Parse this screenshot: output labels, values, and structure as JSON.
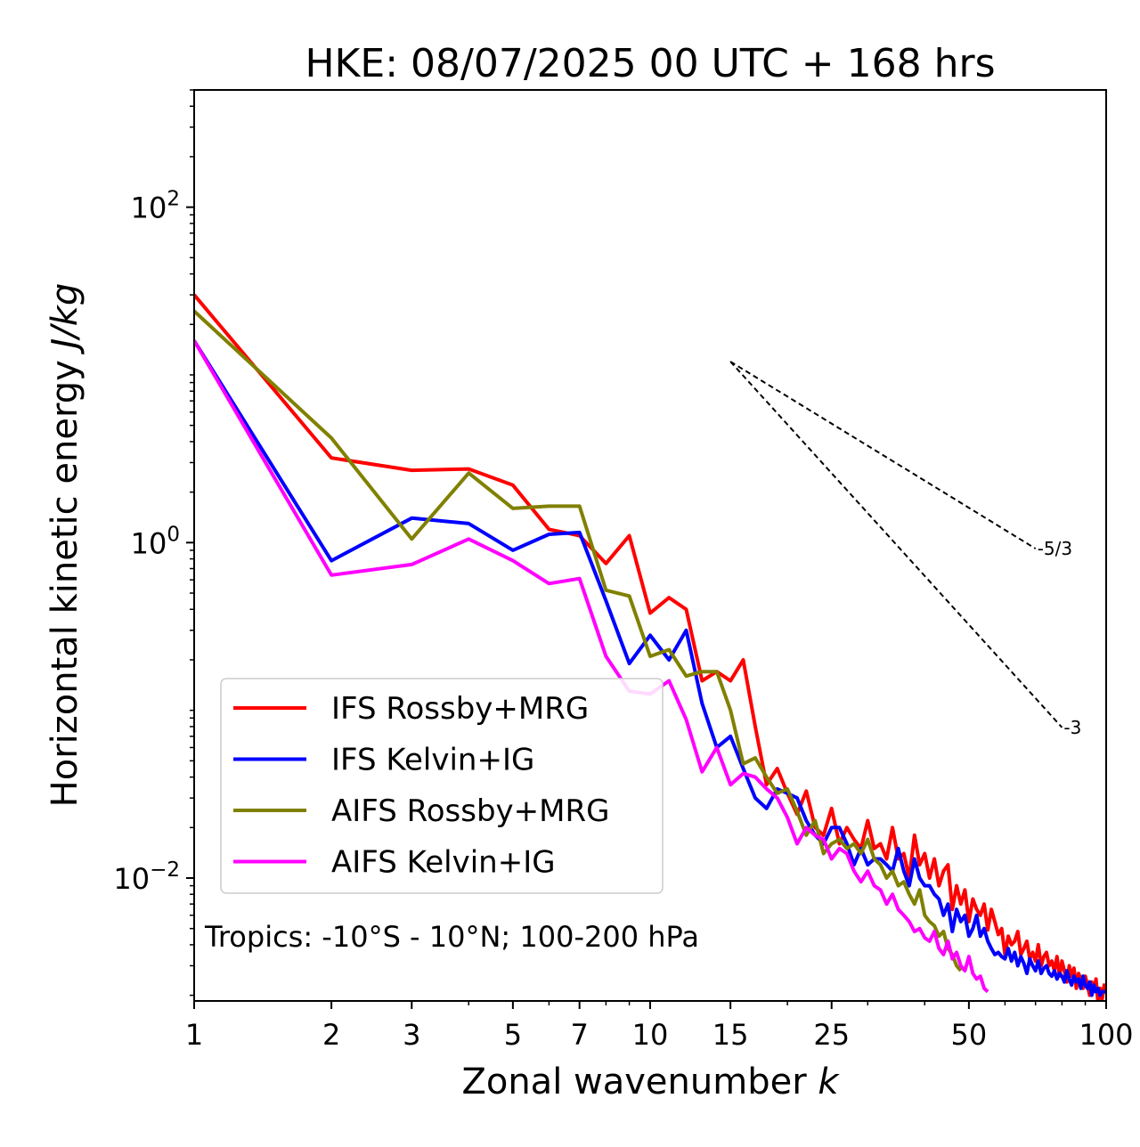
{
  "chart_data": {
    "type": "line",
    "title": "HKE: 08/07/2025 00 UTC + 168 hrs",
    "xlabel": "Zonal wavenumber k",
    "ylabel": "Horizontal kinetic energy J/kg",
    "x_scale": "log",
    "y_scale": "log",
    "xlim": [
      1,
      100
    ],
    "ylim": [
      0.00185,
      500
    ],
    "x_ticks": [
      1,
      2,
      3,
      5,
      7,
      10,
      15,
      25,
      50,
      100
    ],
    "x_tick_labels": [
      "1",
      "2",
      "3",
      "5",
      "7",
      "10",
      "15",
      "25",
      "50",
      "100"
    ],
    "y_major_ticks": [
      0.01,
      1,
      100
    ],
    "y_major_tick_labels": [
      {
        "base": "10",
        "exp": "−2"
      },
      {
        "base": "10",
        "exp": "0"
      },
      {
        "base": "10",
        "exp": "2"
      }
    ],
    "annotation": "Tropics: -10°S - 10°N; 100-200 hPa",
    "legend_position": "lower-left",
    "reference_lines": [
      {
        "label": "-5/3",
        "slope": -1.6667,
        "x": [
          15,
          70
        ],
        "y0": 12.0
      },
      {
        "label": "-3",
        "slope": -3.0,
        "x": [
          15,
          80
        ],
        "y0": 12.0
      }
    ],
    "series": [
      {
        "name": "IFS Rossby+MRG",
        "color": "#ff0000",
        "x": [
          1,
          2,
          3,
          4,
          5,
          6,
          7,
          8,
          9,
          10,
          11,
          12,
          13,
          14,
          15,
          16,
          17,
          18,
          19,
          20,
          21,
          22,
          23,
          24,
          25,
          26,
          27,
          28,
          29,
          30,
          31,
          32,
          33,
          34,
          35,
          36,
          37,
          38,
          39,
          40,
          41,
          42,
          43,
          44,
          45,
          46,
          47,
          48,
          49,
          50,
          51,
          52,
          53,
          54,
          55,
          56,
          57,
          58,
          59,
          60,
          61,
          62,
          63,
          64,
          65,
          66,
          67,
          68,
          69,
          70,
          71,
          72,
          73,
          74,
          75,
          76,
          77,
          78,
          79,
          80,
          81,
          82,
          83,
          84,
          85,
          86,
          87,
          88,
          89,
          90,
          91,
          92,
          93,
          94,
          95,
          96,
          97,
          98,
          99,
          100
        ],
        "y": [
          30.0,
          3.2,
          2.7,
          2.75,
          2.2,
          1.2,
          1.1,
          0.75,
          1.1,
          0.38,
          0.47,
          0.4,
          0.15,
          0.17,
          0.15,
          0.2,
          0.08,
          0.036,
          0.045,
          0.032,
          0.024,
          0.033,
          0.02,
          0.018,
          0.026,
          0.016,
          0.02,
          0.017,
          0.015,
          0.022,
          0.015,
          0.016,
          0.013,
          0.02,
          0.013,
          0.014,
          0.01,
          0.018,
          0.012,
          0.014,
          0.01,
          0.013,
          0.009,
          0.011,
          0.012,
          0.0065,
          0.009,
          0.007,
          0.0085,
          0.0055,
          0.0075,
          0.0065,
          0.006,
          0.007,
          0.0049,
          0.0065,
          0.0055,
          0.0046,
          0.005,
          0.0035,
          0.0045,
          0.004,
          0.0042,
          0.0048,
          0.0035,
          0.0038,
          0.0042,
          0.0033,
          0.0036,
          0.0032,
          0.004,
          0.003,
          0.0034,
          0.0036,
          0.003,
          0.0032,
          0.0028,
          0.0034,
          0.0026,
          0.0032,
          0.0028,
          0.0024,
          0.003,
          0.0026,
          0.0029,
          0.0022,
          0.0027,
          0.0025,
          0.0022,
          0.0026,
          0.0023,
          0.002,
          0.0024,
          0.0021,
          0.0025,
          0.0018,
          0.0022,
          0.0019,
          0.0023,
          0.0021
        ]
      },
      {
        "name": "IFS Kelvin+IG",
        "color": "#0000ff",
        "x": [
          1,
          2,
          3,
          4,
          5,
          6,
          7,
          8,
          9,
          10,
          11,
          12,
          13,
          14,
          15,
          16,
          17,
          18,
          19,
          20,
          21,
          22,
          23,
          24,
          25,
          26,
          27,
          28,
          29,
          30,
          31,
          32,
          33,
          34,
          35,
          36,
          37,
          38,
          39,
          40,
          41,
          42,
          43,
          44,
          45,
          46,
          47,
          48,
          49,
          50,
          51,
          52,
          53,
          54,
          55,
          56,
          57,
          58,
          59,
          60,
          61,
          62,
          63,
          64,
          65,
          66,
          67,
          68,
          69,
          70,
          71,
          72,
          73,
          74,
          75,
          76,
          77,
          78,
          79,
          80,
          81,
          82,
          83,
          84,
          85,
          86,
          87,
          88,
          89,
          90,
          91,
          92,
          93,
          94,
          95,
          96,
          97,
          98,
          99,
          100
        ],
        "y": [
          16.0,
          0.78,
          1.4,
          1.3,
          0.9,
          1.12,
          1.15,
          0.45,
          0.19,
          0.28,
          0.2,
          0.3,
          0.11,
          0.06,
          0.07,
          0.045,
          0.03,
          0.026,
          0.034,
          0.032,
          0.03,
          0.022,
          0.018,
          0.016,
          0.02,
          0.02,
          0.016,
          0.012,
          0.015,
          0.012,
          0.013,
          0.013,
          0.012,
          0.011,
          0.015,
          0.011,
          0.009,
          0.013,
          0.01,
          0.009,
          0.009,
          0.008,
          0.0075,
          0.006,
          0.007,
          0.0048,
          0.0065,
          0.0055,
          0.006,
          0.0045,
          0.005,
          0.006,
          0.0045,
          0.005,
          0.0042,
          0.0038,
          0.0035,
          0.0036,
          0.0034,
          0.0033,
          0.0038,
          0.0032,
          0.0036,
          0.003,
          0.0034,
          0.0031,
          0.0027,
          0.0033,
          0.003,
          0.0028,
          0.0032,
          0.0027,
          0.0029,
          0.003,
          0.0027,
          0.0026,
          0.0028,
          0.0025,
          0.0027,
          0.0026,
          0.0024,
          0.0028,
          0.0025,
          0.0023,
          0.0026,
          0.0024,
          0.0025,
          0.0022,
          0.0026,
          0.0023,
          0.0022,
          0.0024,
          0.002,
          0.0023,
          0.0021,
          0.0022,
          0.002,
          0.0021,
          0.0021,
          0.0021
        ]
      },
      {
        "name": "AIFS Rossby+MRG",
        "color": "#808000",
        "x": [
          1,
          2,
          3,
          4,
          5,
          6,
          7,
          8,
          9,
          10,
          11,
          12,
          13,
          14,
          15,
          16,
          17,
          18,
          19,
          20,
          21,
          22,
          23,
          24,
          25,
          26,
          27,
          28,
          29,
          30,
          31,
          32,
          33,
          34,
          35,
          36,
          37,
          38,
          39,
          40,
          41,
          42,
          43,
          44,
          45,
          46,
          47,
          48
        ],
        "y": [
          24.0,
          4.2,
          1.05,
          2.6,
          1.6,
          1.65,
          1.65,
          0.52,
          0.48,
          0.21,
          0.23,
          0.16,
          0.17,
          0.17,
          0.1,
          0.048,
          0.052,
          0.04,
          0.032,
          0.034,
          0.025,
          0.018,
          0.022,
          0.014,
          0.016,
          0.017,
          0.015,
          0.016,
          0.014,
          0.017,
          0.013,
          0.012,
          0.01,
          0.011,
          0.009,
          0.0095,
          0.008,
          0.007,
          0.0085,
          0.006,
          0.0055,
          0.0052,
          0.0045,
          0.0048,
          0.0038,
          0.0035,
          0.003,
          0.0028
        ]
      },
      {
        "name": "AIFS Kelvin+IG",
        "color": "#ff00ff",
        "x": [
          1,
          2,
          3,
          4,
          5,
          6,
          7,
          8,
          9,
          10,
          11,
          12,
          13,
          14,
          15,
          16,
          17,
          18,
          19,
          20,
          21,
          22,
          23,
          24,
          25,
          26,
          27,
          28,
          29,
          30,
          31,
          32,
          33,
          34,
          35,
          36,
          37,
          38,
          39,
          40,
          41,
          42,
          43,
          44,
          45,
          46,
          47,
          48,
          49,
          50,
          51,
          52,
          53,
          54,
          55
        ],
        "y": [
          16.0,
          0.64,
          0.74,
          1.05,
          0.78,
          0.57,
          0.61,
          0.21,
          0.13,
          0.125,
          0.15,
          0.088,
          0.043,
          0.06,
          0.036,
          0.042,
          0.04,
          0.034,
          0.03,
          0.023,
          0.016,
          0.02,
          0.018,
          0.017,
          0.013,
          0.015,
          0.014,
          0.011,
          0.0095,
          0.011,
          0.009,
          0.0085,
          0.007,
          0.008,
          0.0065,
          0.006,
          0.0055,
          0.0048,
          0.005,
          0.0044,
          0.0042,
          0.0048,
          0.0038,
          0.0035,
          0.0042,
          0.0033,
          0.0036,
          0.003,
          0.0028,
          0.0034,
          0.0027,
          0.0025,
          0.0026,
          0.0022,
          0.0021
        ]
      }
    ]
  }
}
